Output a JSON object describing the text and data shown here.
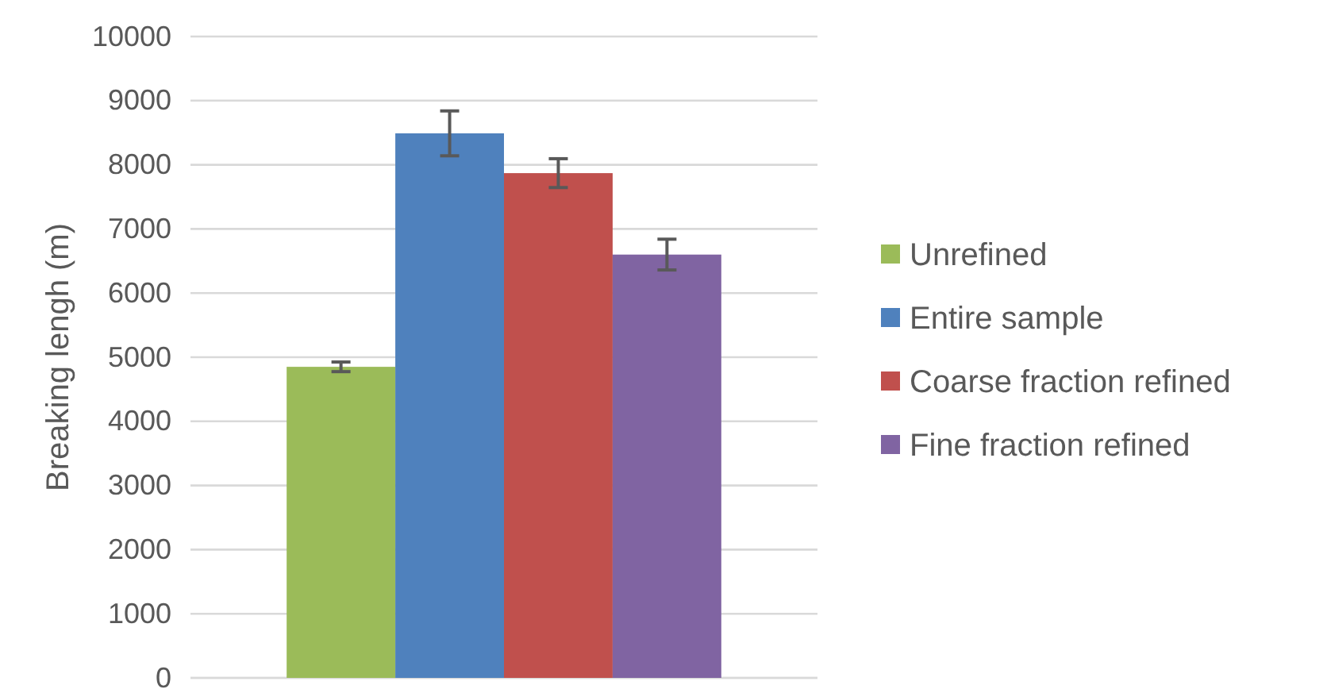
{
  "chart_data": {
    "type": "bar",
    "ylabel": "Breaking lengh (m)",
    "categories": [
      null
    ],
    "ylim": [
      0,
      10000
    ],
    "yticks": [
      0,
      1000,
      2000,
      3000,
      4000,
      5000,
      6000,
      7000,
      8000,
      9000,
      10000
    ],
    "grid": "y",
    "legend": "right",
    "series": [
      {
        "name": "Unrefined",
        "color": "#9bbb59",
        "values": [
          4850
        ],
        "errors": [
          75
        ]
      },
      {
        "name": "Entire sample",
        "color": "#4f81bd",
        "values": [
          8490
        ],
        "errors": [
          350
        ]
      },
      {
        "name": "Coarse fraction refined",
        "color": "#c0504d",
        "values": [
          7870
        ],
        "errors": [
          225
        ]
      },
      {
        "name": "Fine fraction refined",
        "color": "#8064a2",
        "values": [
          6600
        ],
        "errors": [
          240
        ]
      }
    ]
  }
}
